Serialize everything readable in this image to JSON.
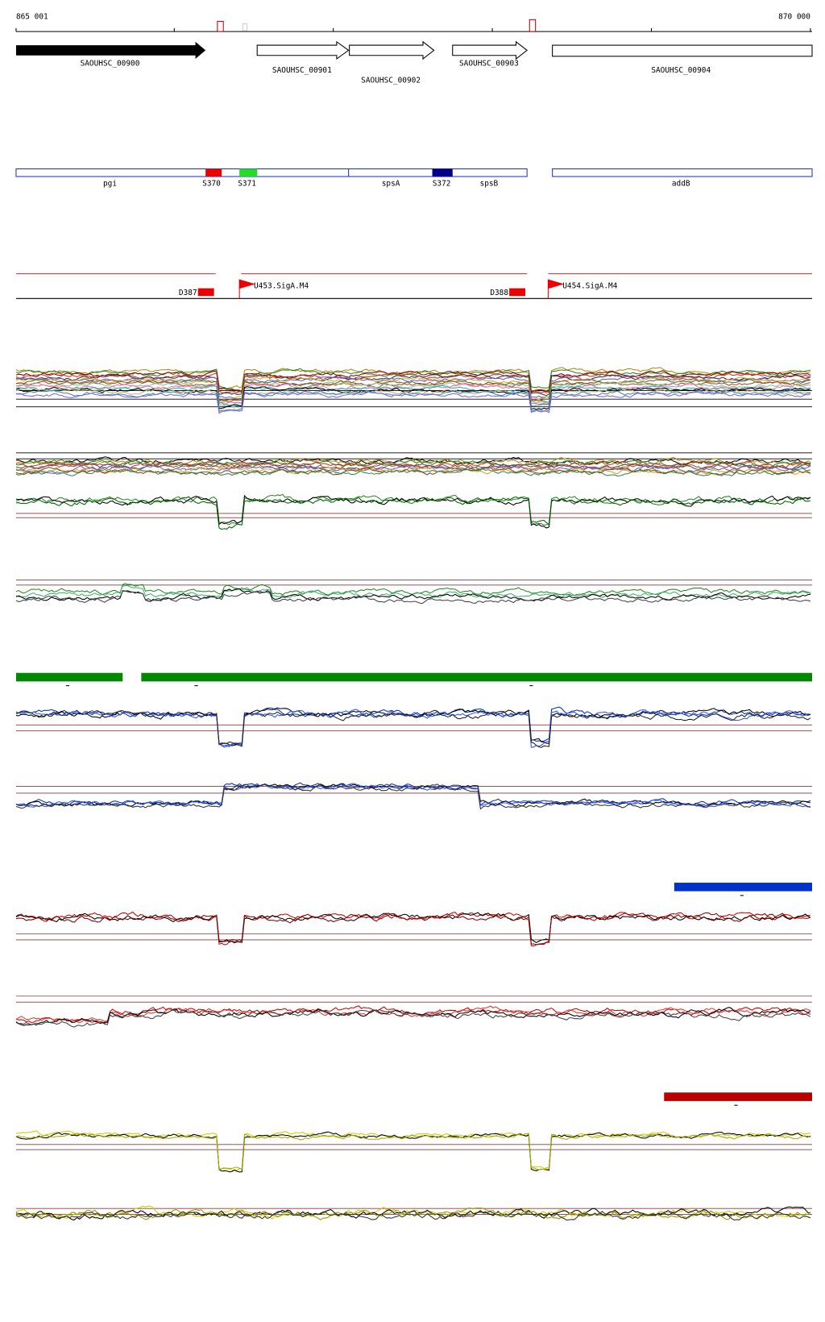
{
  "ruler": {
    "start": "865 001",
    "end": "870 000"
  },
  "genes": [
    "SAOUHSC_00900",
    "SAOUHSC_00901",
    "SAOUHSC_00902",
    "SAOUHSC_00903",
    "SAOUHSC_00904"
  ],
  "regions": [
    "pgi",
    "S370",
    "S371",
    "spsA",
    "S372",
    "spsB",
    "addB"
  ],
  "promoters": [
    "D387",
    "U453.SigA.M4",
    "D388",
    "U454.SigA.M4"
  ]
}
